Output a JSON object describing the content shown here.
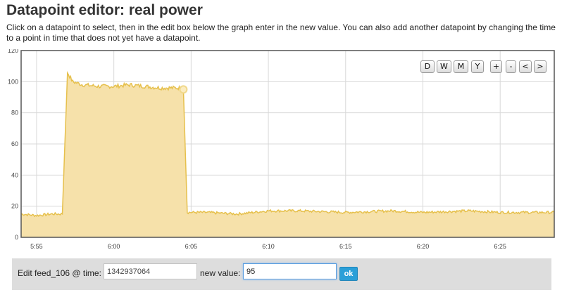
{
  "page": {
    "title": "Datapoint editor: real power",
    "description": "Click on a datapoint to select, then in the edit box below the graph enter in the new value. You can also add another datapoint by changing the time to a point in time that does not yet have a datapoint."
  },
  "nav_buttons": [
    {
      "label": "D",
      "name": "zoom-day-button"
    },
    {
      "label": "W",
      "name": "zoom-week-button"
    },
    {
      "label": "M",
      "name": "zoom-month-button"
    },
    {
      "label": "Y",
      "name": "zoom-year-button"
    },
    {
      "label": "+",
      "name": "zoom-in-button"
    },
    {
      "label": "-",
      "name": "zoom-out-button"
    },
    {
      "label": "<",
      "name": "pan-left-button"
    },
    {
      "label": ">",
      "name": "pan-right-button"
    }
  ],
  "editor": {
    "time_label": "Edit feed_106 @ time:",
    "time_value": "1342937064",
    "value_label": "new value:",
    "value_value": "95",
    "ok_label": "ok"
  },
  "chart_data": {
    "type": "area",
    "y_ticks": [
      "0",
      "20",
      "40",
      "60",
      "80",
      "100",
      "120"
    ],
    "ylim": [
      0,
      120
    ],
    "x_ticks": [
      "5:55",
      "6:00",
      "6:05",
      "6:10",
      "6:15",
      "6:20",
      "6:25"
    ],
    "xlim": [
      "5:54",
      "6:28:30"
    ],
    "grid": true,
    "colors": {
      "line": "#e6c04c",
      "fill": "#f6e1aa",
      "grid": "#d8d8d8",
      "border": "#555555"
    },
    "series": [
      {
        "points": [
          [
            "5:54",
            15
          ],
          [
            "5:55",
            14
          ],
          [
            "5:56",
            15
          ],
          [
            "5:56:40",
            15
          ],
          [
            "5:57",
            106
          ],
          [
            "5:57:20",
            100
          ],
          [
            "5:58",
            98
          ],
          [
            "5:59",
            97
          ],
          [
            "6:00",
            97
          ],
          [
            "6:01",
            98
          ],
          [
            "6:02",
            97
          ],
          [
            "6:03",
            96
          ],
          [
            "6:04:10",
            96
          ],
          [
            "6:04:30",
            95
          ],
          [
            "6:04:45",
            16
          ],
          [
            "6:06",
            16
          ],
          [
            "6:08",
            15
          ],
          [
            "6:10",
            17
          ],
          [
            "6:12",
            17
          ],
          [
            "6:15",
            16
          ],
          [
            "6:18",
            17
          ],
          [
            "6:20",
            16
          ],
          [
            "6:23",
            17
          ],
          [
            "6:25",
            16
          ],
          [
            "6:28:30",
            16
          ]
        ]
      }
    ],
    "selected_point": [
      "6:04:30",
      95
    ]
  }
}
